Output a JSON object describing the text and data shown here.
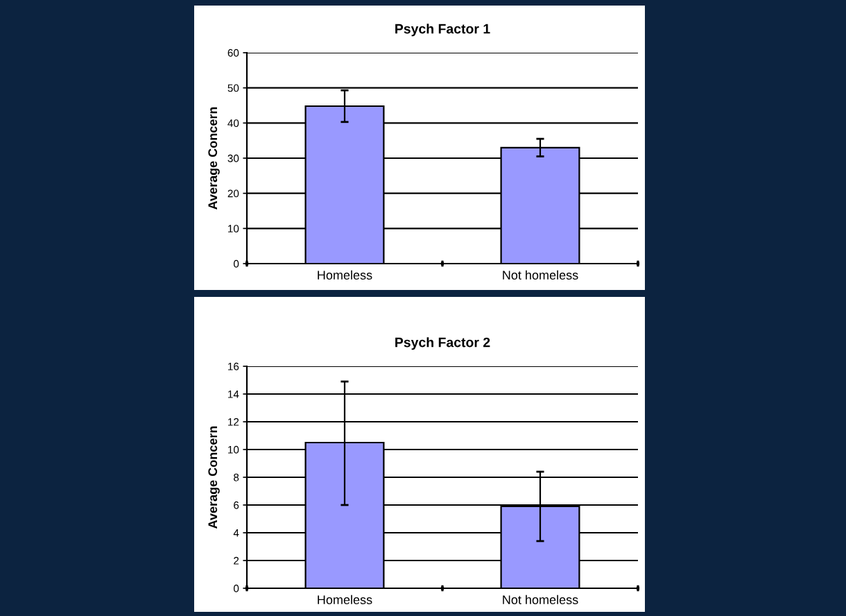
{
  "chart_data": [
    {
      "type": "bar",
      "title": "Psych Factor 1",
      "ylabel": "Average Concern",
      "categories": [
        "Homeless",
        "Not homeless"
      ],
      "values": [
        44.8,
        33
      ],
      "errors": [
        [
          40.3,
          49.3
        ],
        [
          30.5,
          35.5
        ]
      ],
      "color": "#9999ff",
      "ylim": [
        0,
        60
      ],
      "yticks": [
        0,
        10,
        20,
        30,
        40,
        50,
        60
      ],
      "grid": "y",
      "legend": false
    },
    {
      "type": "bar",
      "title": "Psych Factor 2",
      "ylabel": "Average Concern",
      "categories": [
        "Homeless",
        "Not homeless"
      ],
      "values": [
        10.5,
        5.9
      ],
      "errors": [
        [
          6,
          14.9
        ],
        [
          3.4,
          8.4
        ]
      ],
      "color": "#9999ff",
      "ylim": [
        0,
        16
      ],
      "yticks": [
        0,
        2,
        4,
        6,
        8,
        10,
        12,
        14,
        16
      ],
      "grid": "y",
      "legend": false
    }
  ]
}
